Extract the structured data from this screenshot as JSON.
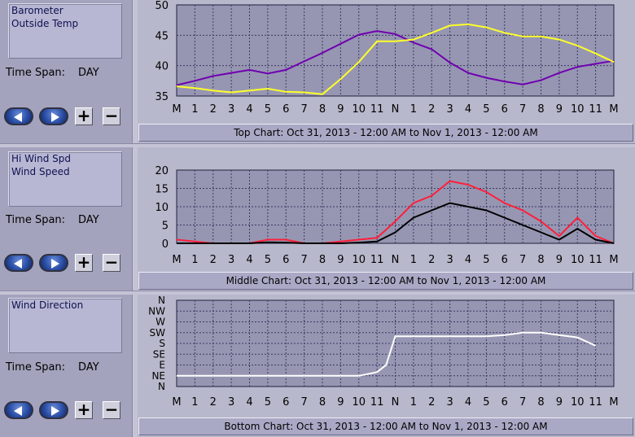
{
  "panels": [
    {
      "legend": [
        "Barometer",
        "Outside Temp"
      ],
      "time_span_label": "Time Span:",
      "time_span_value": "DAY"
    },
    {
      "legend": [
        "Hi Wind Spd",
        "Wind Speed"
      ],
      "time_span_label": "Time Span:",
      "time_span_value": "DAY"
    },
    {
      "legend": [
        "Wind Direction"
      ],
      "time_span_label": "Time Span:",
      "time_span_value": "DAY"
    }
  ],
  "buttons": {
    "plus": "+",
    "minus": "−"
  },
  "captions": {
    "top": "Top Chart:  Oct 31, 2013 - 12:00 AM  to  Nov 1, 2013 - 12:00 AM",
    "middle": "Middle Chart:  Oct 31, 2013 - 12:00 AM  to  Nov 1, 2013 - 12:00 AM",
    "bottom": "Bottom Chart:  Oct 31, 2013 - 12:00 AM  to  Nov 1, 2013 - 12:00 AM"
  },
  "colors": {
    "plot_bg": "#9696b2",
    "grid": "#3a3a66",
    "barometer": "#7000b0",
    "outside_temp": "#ffff2a",
    "hi_wind": "#ff1f3a",
    "wind": "#000000",
    "wind_dir": "#ffffff"
  },
  "chart_data": [
    {
      "type": "line",
      "xticks": [
        "M",
        "1",
        "2",
        "3",
        "4",
        "5",
        "6",
        "7",
        "8",
        "9",
        "10",
        "11",
        "N",
        "1",
        "2",
        "3",
        "4",
        "5",
        "6",
        "7",
        "8",
        "9",
        "10",
        "11",
        "M"
      ],
      "ylim": [
        35,
        50
      ],
      "yticks": [
        "35",
        "40",
        "45",
        "50"
      ],
      "grid": true,
      "series": [
        {
          "name": "Barometer",
          "color": "#7000b0",
          "x": [
            0,
            1,
            2,
            3,
            4,
            5,
            6,
            7,
            8,
            9,
            10,
            11,
            12,
            13,
            14,
            15,
            16,
            17,
            18,
            19,
            20,
            21,
            22,
            23,
            24
          ],
          "y": [
            36.8,
            37.5,
            38.3,
            38.8,
            39.3,
            38.7,
            39.3,
            40.7,
            42.1,
            43.6,
            45.1,
            45.7,
            45.2,
            43.8,
            42.7,
            40.5,
            38.8,
            38.0,
            37.4,
            36.9,
            37.6,
            38.8,
            39.8,
            40.3,
            40.8
          ]
        },
        {
          "name": "Outside Temp",
          "color": "#ffff2a",
          "x": [
            0,
            1,
            2,
            3,
            4,
            5,
            6,
            7,
            8,
            9,
            10,
            11,
            12,
            13,
            14,
            15,
            16,
            17,
            18,
            19,
            20,
            21,
            22,
            23,
            24
          ],
          "y": [
            36.6,
            36.3,
            35.9,
            35.6,
            35.9,
            36.2,
            35.7,
            35.6,
            35.3,
            37.8,
            40.6,
            44.0,
            44.0,
            44.3,
            45.4,
            46.6,
            46.8,
            46.3,
            45.4,
            44.8,
            44.8,
            44.3,
            43.3,
            42.0,
            40.6
          ]
        }
      ]
    },
    {
      "type": "line",
      "xticks": [
        "M",
        "1",
        "2",
        "3",
        "4",
        "5",
        "6",
        "7",
        "8",
        "9",
        "10",
        "11",
        "N",
        "1",
        "2",
        "3",
        "4",
        "5",
        "6",
        "7",
        "8",
        "9",
        "10",
        "11",
        "M"
      ],
      "ylim": [
        0,
        20
      ],
      "yticks": [
        "0",
        "5",
        "10",
        "15",
        "20"
      ],
      "grid": true,
      "series": [
        {
          "name": "Hi Wind Spd",
          "color": "#ff1f3a",
          "x": [
            0,
            1,
            2,
            3,
            4,
            5,
            6,
            7,
            8,
            9,
            10,
            11,
            12,
            13,
            14,
            15,
            16,
            17,
            18,
            19,
            20,
            21,
            22,
            23,
            24
          ],
          "y": [
            1,
            0.5,
            0,
            0,
            0,
            1,
            1,
            0,
            0,
            0.5,
            1,
            1.5,
            6,
            11,
            13,
            17,
            16,
            14,
            11,
            9,
            6,
            2,
            7,
            2,
            0
          ]
        },
        {
          "name": "Wind Speed",
          "color": "#000000",
          "x": [
            0,
            1,
            2,
            3,
            4,
            5,
            6,
            7,
            8,
            9,
            10,
            11,
            12,
            13,
            14,
            15,
            16,
            17,
            18,
            19,
            20,
            21,
            22,
            23,
            24
          ],
          "y": [
            0,
            0,
            0,
            0,
            0,
            0.3,
            0.2,
            0,
            0,
            0,
            0.2,
            0.5,
            3,
            7,
            9,
            11,
            10,
            9,
            7,
            5,
            3,
            1,
            4,
            1,
            0
          ]
        }
      ]
    },
    {
      "type": "line",
      "xticks": [
        "M",
        "1",
        "2",
        "3",
        "4",
        "5",
        "6",
        "7",
        "8",
        "9",
        "10",
        "11",
        "N",
        "1",
        "2",
        "3",
        "4",
        "5",
        "6",
        "7",
        "8",
        "9",
        "10",
        "11",
        "M"
      ],
      "yticks": [
        "N",
        "NW",
        "W",
        "SW",
        "S",
        "SE",
        "E",
        "NE",
        "N"
      ],
      "ylim": [
        0,
        360
      ],
      "grid": true,
      "series": [
        {
          "name": "Wind Direction",
          "color": "#ffffff",
          "x": [
            0,
            1,
            5,
            6,
            9,
            10,
            11,
            11.5,
            12,
            13,
            14,
            15,
            16,
            17,
            18,
            19,
            20,
            21,
            22,
            23
          ],
          "y": [
            45,
            45,
            45,
            45,
            45,
            45,
            60,
            90,
            210,
            210,
            210,
            210,
            210,
            210,
            215,
            225,
            225,
            215,
            205,
            170
          ]
        }
      ]
    }
  ]
}
